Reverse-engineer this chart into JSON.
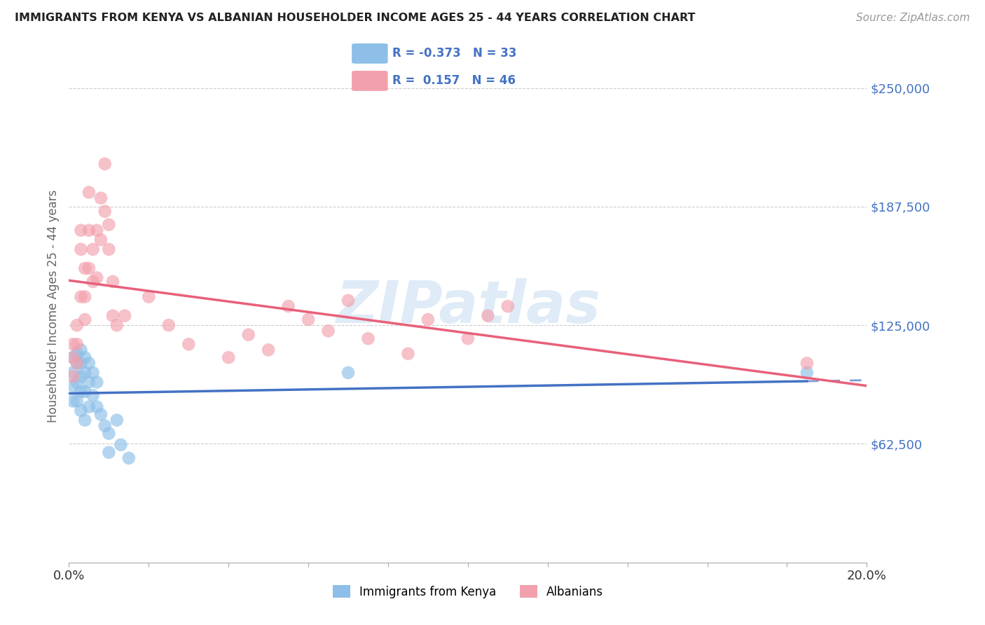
{
  "title": "IMMIGRANTS FROM KENYA VS ALBANIAN HOUSEHOLDER INCOME AGES 25 - 44 YEARS CORRELATION CHART",
  "source": "Source: ZipAtlas.com",
  "ylabel": "Householder Income Ages 25 - 44 years",
  "ytick_values": [
    62500,
    125000,
    187500,
    250000
  ],
  "ytick_labels": [
    "$62,500",
    "$125,000",
    "$187,500",
    "$250,000"
  ],
  "xlim": [
    0.0,
    0.2
  ],
  "ylim": [
    0,
    270000
  ],
  "kenya_color": "#8DBFE8",
  "kenya_color_line": "#4472C4",
  "albanian_color": "#F2A0AD",
  "albanian_color_line": "#E8607A",
  "kenya_R": -0.373,
  "kenya_N": 33,
  "albanian_R": 0.157,
  "albanian_N": 46,
  "watermark": "ZIPatlas",
  "kenya_x": [
    0.001,
    0.001,
    0.001,
    0.001,
    0.002,
    0.002,
    0.002,
    0.002,
    0.003,
    0.003,
    0.003,
    0.003,
    0.003,
    0.004,
    0.004,
    0.004,
    0.004,
    0.005,
    0.005,
    0.005,
    0.006,
    0.006,
    0.007,
    0.007,
    0.008,
    0.009,
    0.01,
    0.01,
    0.012,
    0.013,
    0.015,
    0.07,
    0.185
  ],
  "kenya_y": [
    108000,
    100000,
    93000,
    85000,
    110000,
    105000,
    95000,
    85000,
    112000,
    105000,
    98000,
    90000,
    80000,
    108000,
    100000,
    90000,
    75000,
    105000,
    95000,
    82000,
    100000,
    88000,
    95000,
    82000,
    78000,
    72000,
    68000,
    58000,
    75000,
    62000,
    55000,
    100000,
    100000
  ],
  "albanian_x": [
    0.001,
    0.001,
    0.001,
    0.002,
    0.002,
    0.002,
    0.003,
    0.003,
    0.003,
    0.004,
    0.004,
    0.004,
    0.005,
    0.005,
    0.005,
    0.006,
    0.006,
    0.007,
    0.007,
    0.008,
    0.008,
    0.009,
    0.009,
    0.01,
    0.01,
    0.011,
    0.011,
    0.012,
    0.014,
    0.02,
    0.025,
    0.03,
    0.04,
    0.045,
    0.05,
    0.055,
    0.06,
    0.065,
    0.07,
    0.075,
    0.085,
    0.09,
    0.1,
    0.105,
    0.11,
    0.185
  ],
  "albanian_y": [
    115000,
    108000,
    98000,
    125000,
    115000,
    105000,
    175000,
    165000,
    140000,
    155000,
    140000,
    128000,
    195000,
    175000,
    155000,
    165000,
    148000,
    175000,
    150000,
    192000,
    170000,
    210000,
    185000,
    178000,
    165000,
    148000,
    130000,
    125000,
    130000,
    140000,
    125000,
    115000,
    108000,
    120000,
    112000,
    135000,
    128000,
    122000,
    138000,
    118000,
    110000,
    128000,
    118000,
    130000,
    135000,
    105000
  ]
}
